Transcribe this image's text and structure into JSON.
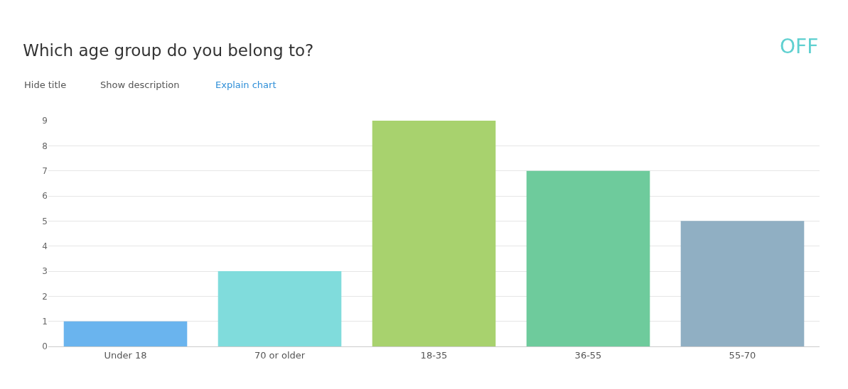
{
  "chart_data": {
    "type": "bar",
    "title": "Which age group do you belong to?",
    "categories": [
      "Under 18",
      "70 or older",
      "18-35",
      "36-55",
      "55-70"
    ],
    "values": [
      1,
      3,
      9,
      7,
      5
    ],
    "colors": [
      "#6ab4ee",
      "#80dcdc",
      "#a8d26e",
      "#6ecb9c",
      "#90afc3"
    ],
    "ylim": [
      0,
      9
    ],
    "yticks": [
      0,
      1,
      2,
      3,
      4,
      5,
      6,
      7,
      8,
      9
    ],
    "grid": "y",
    "legend": false,
    "annotations": [
      "Hide title",
      "Show description",
      "Explain chart",
      "OFF"
    ]
  }
}
